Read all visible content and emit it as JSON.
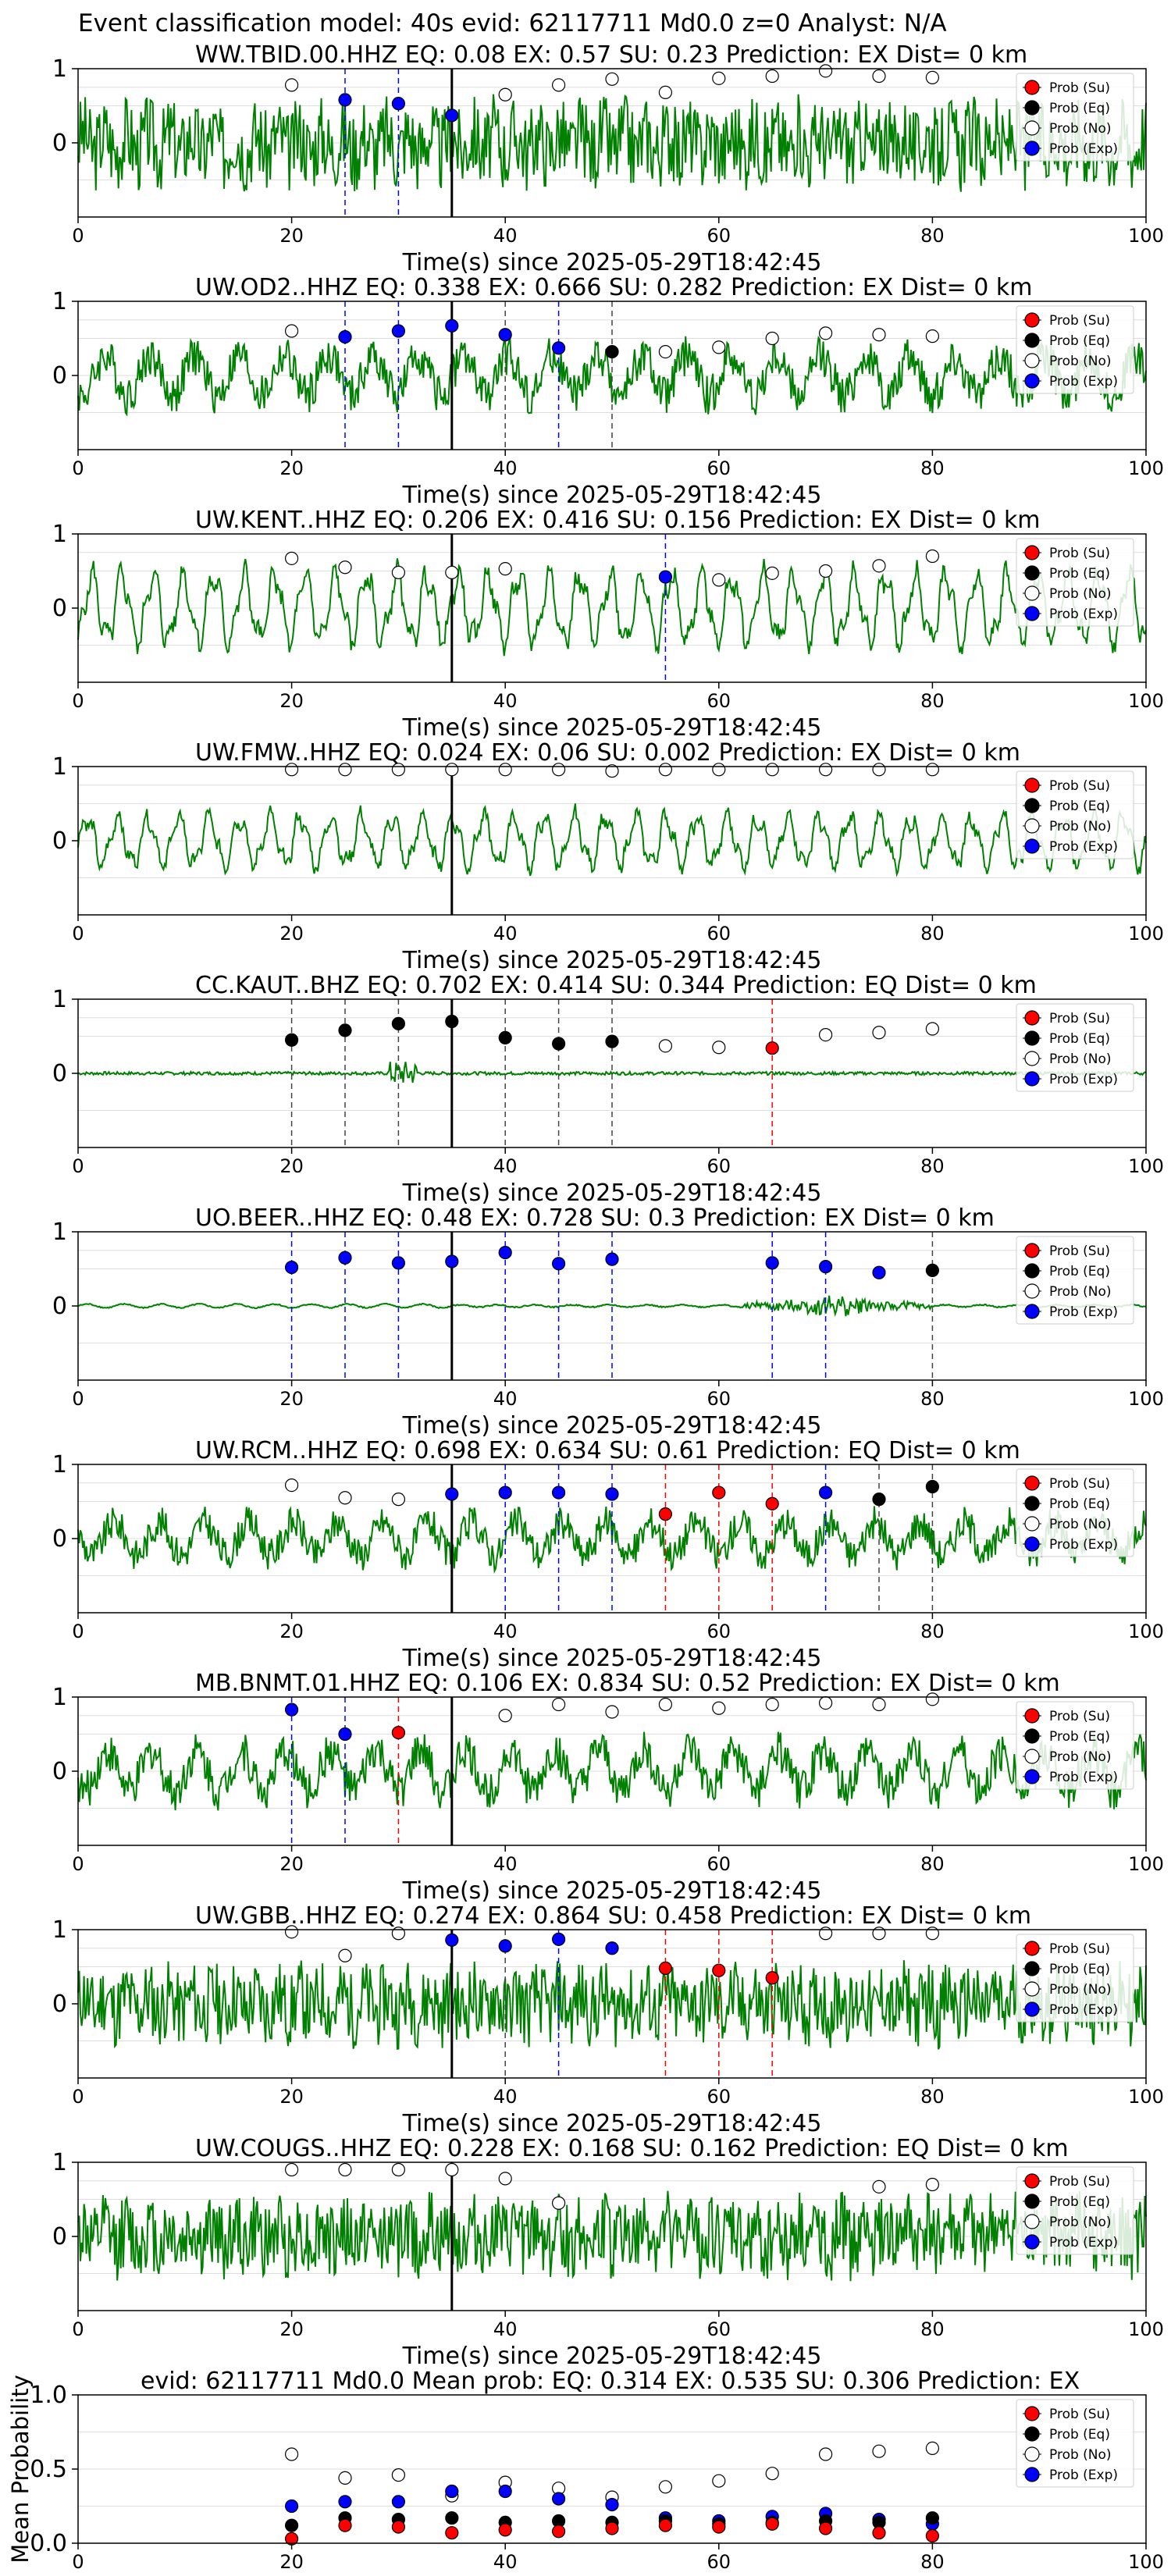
{
  "header": {
    "title": "Event classification model: 40s evid: 62117711 Md0.0 z=0 Analyst: N/A"
  },
  "legend": {
    "su": "Prob (Su)",
    "eq": "Prob (Eq)",
    "no": "Prob (No)",
    "exp": "Prob (Exp)"
  },
  "colors": {
    "waveform": "#008000",
    "su": "#ff0000",
    "eq": "#000000",
    "no": "#ffffff",
    "exp": "#0000ff"
  },
  "chart_data": [
    {
      "type": "line",
      "name": "WW.TBID.00.HHZ",
      "title": "WW.TBID.00.HHZ   EQ: 0.08  EX: 0.57  SU: 0.23   Prediction: EX    Dist= 0 km",
      "xlabel": "Time(s) since 2025-05-29T18:42:45",
      "xlim": [
        0,
        100
      ],
      "ylim": [
        -1,
        1
      ],
      "xticks": [
        0,
        20,
        40,
        60,
        80,
        100
      ],
      "yticks": [
        0,
        1
      ],
      "onset": 35,
      "amplitude": 0.6,
      "character": "noisy",
      "points": [
        [
          20,
          "no",
          0.78
        ],
        [
          25,
          "exp",
          0.58
        ],
        [
          30,
          "exp",
          0.53
        ],
        [
          35,
          "exp",
          0.37
        ],
        [
          40,
          "no",
          0.65
        ],
        [
          45,
          "no",
          0.78
        ],
        [
          50,
          "no",
          0.86
        ],
        [
          55,
          "no",
          0.68
        ],
        [
          60,
          "no",
          0.87
        ],
        [
          65,
          "no",
          0.9
        ],
        [
          70,
          "no",
          0.97
        ],
        [
          75,
          "no",
          0.9
        ],
        [
          80,
          "no",
          0.88
        ]
      ],
      "vlines": [
        [
          25,
          "exp"
        ],
        [
          30,
          "exp"
        ]
      ]
    },
    {
      "type": "line",
      "name": "UW.OD2..HHZ",
      "title": "UW.OD2..HHZ   EQ: 0.338  EX: 0.666  SU: 0.282   Prediction: EX    Dist= 0 km",
      "xlabel": "Time(s) since 2025-05-29T18:42:45",
      "xlim": [
        0,
        100
      ],
      "ylim": [
        -1,
        1
      ],
      "xticks": [
        0,
        20,
        40,
        60,
        80,
        100
      ],
      "yticks": [
        0,
        1
      ],
      "onset": 35,
      "amplitude": 0.55,
      "character": "mixed",
      "points": [
        [
          20,
          "no",
          0.6
        ],
        [
          25,
          "exp",
          0.52
        ],
        [
          30,
          "exp",
          0.6
        ],
        [
          35,
          "exp",
          0.67
        ],
        [
          40,
          "exp",
          0.55
        ],
        [
          45,
          "exp",
          0.37
        ],
        [
          50,
          "eq",
          0.32
        ],
        [
          55,
          "no",
          0.32
        ],
        [
          60,
          "no",
          0.38
        ],
        [
          65,
          "no",
          0.5
        ],
        [
          70,
          "no",
          0.57
        ],
        [
          75,
          "no",
          0.55
        ],
        [
          80,
          "no",
          0.53
        ]
      ],
      "vlines": [
        [
          25,
          "exp"
        ],
        [
          30,
          "exp"
        ],
        [
          40,
          "eq"
        ],
        [
          45,
          "exp"
        ],
        [
          50,
          "eq"
        ]
      ]
    },
    {
      "type": "line",
      "name": "UW.KENT..HHZ",
      "title": "UW.KENT..HHZ   EQ: 0.206  EX: 0.416  SU: 0.156   Prediction: EX    Dist= 0 km",
      "xlabel": "Time(s) since 2025-05-29T18:42:45",
      "xlim": [
        0,
        100
      ],
      "ylim": [
        -1,
        1
      ],
      "xticks": [
        0,
        20,
        40,
        60,
        80,
        100
      ],
      "yticks": [
        0,
        1
      ],
      "onset": 35,
      "amplitude": 0.55,
      "character": "oscill",
      "points": [
        [
          20,
          "no",
          0.67
        ],
        [
          25,
          "no",
          0.55
        ],
        [
          30,
          "no",
          0.48
        ],
        [
          35,
          "no",
          0.48
        ],
        [
          40,
          "no",
          0.53
        ],
        [
          55,
          "exp",
          0.42
        ],
        [
          60,
          "no",
          0.38
        ],
        [
          65,
          "no",
          0.47
        ],
        [
          70,
          "no",
          0.5
        ],
        [
          75,
          "no",
          0.57
        ],
        [
          80,
          "no",
          0.7
        ]
      ],
      "vlines": [
        [
          55,
          "exp"
        ]
      ]
    },
    {
      "type": "line",
      "name": "UW.FMW..HHZ",
      "title": "UW.FMW..HHZ   EQ: 0.024  EX: 0.06  SU: 0.002   Prediction: EX    Dist= 0 km",
      "xlabel": "Time(s) since 2025-05-29T18:42:45",
      "xlim": [
        0,
        100
      ],
      "ylim": [
        -1,
        1
      ],
      "xticks": [
        0,
        20,
        40,
        60,
        80,
        100
      ],
      "yticks": [
        0,
        1
      ],
      "onset": 35,
      "amplitude": 0.4,
      "character": "oscill",
      "points": [
        [
          20,
          "no",
          0.96
        ],
        [
          25,
          "no",
          0.96
        ],
        [
          30,
          "no",
          0.96
        ],
        [
          35,
          "no",
          0.96
        ],
        [
          40,
          "no",
          0.96
        ],
        [
          45,
          "no",
          0.96
        ],
        [
          50,
          "no",
          0.94
        ],
        [
          55,
          "no",
          0.96
        ],
        [
          60,
          "no",
          0.96
        ],
        [
          65,
          "no",
          0.96
        ],
        [
          70,
          "no",
          0.96
        ],
        [
          75,
          "no",
          0.96
        ],
        [
          80,
          "no",
          0.96
        ]
      ],
      "vlines": []
    },
    {
      "type": "line",
      "name": "CC.KAUT..BHZ",
      "title": "CC.KAUT..BHZ   EQ: 0.702  EX: 0.414  SU: 0.344   Prediction: EQ    Dist= 0 km",
      "xlabel": "Time(s) since 2025-05-29T18:42:45",
      "xlim": [
        0,
        100
      ],
      "ylim": [
        -1,
        1
      ],
      "xticks": [
        0,
        20,
        40,
        60,
        80,
        100
      ],
      "yticks": [
        0,
        1
      ],
      "onset": 35,
      "amplitude": 0.15,
      "character": "quiet",
      "points": [
        [
          20,
          "eq",
          0.45
        ],
        [
          25,
          "eq",
          0.58
        ],
        [
          30,
          "eq",
          0.67
        ],
        [
          35,
          "eq",
          0.7
        ],
        [
          40,
          "eq",
          0.48
        ],
        [
          45,
          "eq",
          0.4
        ],
        [
          50,
          "eq",
          0.43
        ],
        [
          55,
          "no",
          0.37
        ],
        [
          60,
          "no",
          0.35
        ],
        [
          65,
          "su",
          0.34
        ],
        [
          70,
          "no",
          0.52
        ],
        [
          75,
          "no",
          0.55
        ],
        [
          80,
          "no",
          0.6
        ]
      ],
      "vlines": [
        [
          20,
          "eq"
        ],
        [
          25,
          "eq"
        ],
        [
          30,
          "eq"
        ],
        [
          40,
          "eq"
        ],
        [
          45,
          "eq"
        ],
        [
          50,
          "eq"
        ],
        [
          65,
          "su"
        ]
      ]
    },
    {
      "type": "line",
      "name": "UO.BEER..HHZ",
      "title": "UO.BEER..HHZ   EQ: 0.48  EX: 0.728  SU: 0.3   Prediction: EX    Dist= 0 km",
      "xlabel": "Time(s) since 2025-05-29T18:42:45",
      "xlim": [
        0,
        100
      ],
      "ylim": [
        -1,
        1
      ],
      "xticks": [
        0,
        20,
        40,
        60,
        80,
        100
      ],
      "yticks": [
        0,
        1
      ],
      "onset": 35,
      "amplitude": 0.12,
      "character": "burst",
      "points": [
        [
          20,
          "exp",
          0.52
        ],
        [
          25,
          "exp",
          0.65
        ],
        [
          30,
          "exp",
          0.58
        ],
        [
          35,
          "exp",
          0.6
        ],
        [
          40,
          "exp",
          0.72
        ],
        [
          45,
          "exp",
          0.57
        ],
        [
          50,
          "exp",
          0.63
        ],
        [
          65,
          "exp",
          0.58
        ],
        [
          70,
          "exp",
          0.53
        ],
        [
          75,
          "exp",
          0.45
        ],
        [
          80,
          "eq",
          0.48
        ]
      ],
      "vlines": [
        [
          20,
          "exp"
        ],
        [
          25,
          "exp"
        ],
        [
          30,
          "exp"
        ],
        [
          40,
          "exp"
        ],
        [
          45,
          "exp"
        ],
        [
          50,
          "exp"
        ],
        [
          65,
          "exp"
        ],
        [
          70,
          "exp"
        ],
        [
          80,
          "eq"
        ]
      ]
    },
    {
      "type": "line",
      "name": "UW.RCM..HHZ",
      "title": "UW.RCM..HHZ   EQ: 0.698  EX: 0.634  SU: 0.61   Prediction: EQ    Dist= 0 km",
      "xlabel": "Time(s) since 2025-05-29T18:42:45",
      "xlim": [
        0,
        100
      ],
      "ylim": [
        -1,
        1
      ],
      "xticks": [
        0,
        20,
        40,
        60,
        80,
        100
      ],
      "yticks": [
        0,
        1
      ],
      "onset": 35,
      "amplitude": 0.45,
      "character": "mixed",
      "points": [
        [
          20,
          "no",
          0.72
        ],
        [
          25,
          "no",
          0.55
        ],
        [
          30,
          "no",
          0.53
        ],
        [
          35,
          "exp",
          0.6
        ],
        [
          40,
          "exp",
          0.62
        ],
        [
          45,
          "exp",
          0.62
        ],
        [
          50,
          "exp",
          0.6
        ],
        [
          55,
          "su",
          0.33
        ],
        [
          60,
          "su",
          0.62
        ],
        [
          65,
          "su",
          0.47
        ],
        [
          70,
          "exp",
          0.62
        ],
        [
          75,
          "eq",
          0.53
        ],
        [
          80,
          "eq",
          0.7
        ]
      ],
      "vlines": [
        [
          40,
          "exp"
        ],
        [
          45,
          "exp"
        ],
        [
          50,
          "exp"
        ],
        [
          55,
          "su"
        ],
        [
          60,
          "su"
        ],
        [
          65,
          "su"
        ],
        [
          70,
          "exp"
        ],
        [
          75,
          "eq"
        ],
        [
          80,
          "eq"
        ]
      ]
    },
    {
      "type": "line",
      "name": "MB.BNMT.01.HHZ",
      "title": "MB.BNMT.01.HHZ   EQ: 0.106  EX: 0.834  SU: 0.52   Prediction: EX    Dist= 0 km",
      "xlabel": "Time(s) since 2025-05-29T18:42:45",
      "xlim": [
        0,
        100
      ],
      "ylim": [
        -1,
        1
      ],
      "xticks": [
        0,
        20,
        40,
        60,
        80,
        100
      ],
      "yticks": [
        0,
        1
      ],
      "onset": 35,
      "amplitude": 0.55,
      "character": "mixed",
      "points": [
        [
          20,
          "exp",
          0.83
        ],
        [
          25,
          "exp",
          0.5
        ],
        [
          30,
          "su",
          0.52
        ],
        [
          40,
          "no",
          0.75
        ],
        [
          45,
          "no",
          0.9
        ],
        [
          50,
          "no",
          0.8
        ],
        [
          55,
          "no",
          0.9
        ],
        [
          60,
          "no",
          0.85
        ],
        [
          65,
          "no",
          0.9
        ],
        [
          70,
          "no",
          0.92
        ],
        [
          75,
          "no",
          0.9
        ],
        [
          80,
          "no",
          0.97
        ]
      ],
      "vlines": [
        [
          20,
          "exp"
        ],
        [
          25,
          "exp"
        ],
        [
          30,
          "su"
        ]
      ]
    },
    {
      "type": "line",
      "name": "UW.GBB..HHZ",
      "title": "UW.GBB..HHZ   EQ: 0.274  EX: 0.864  SU: 0.458   Prediction: EX    Dist= 0 km",
      "xlabel": "Time(s) since 2025-05-29T18:42:45",
      "xlim": [
        0,
        100
      ],
      "ylim": [
        -1,
        1
      ],
      "xticks": [
        0,
        20,
        40,
        60,
        80,
        100
      ],
      "yticks": [
        0,
        1
      ],
      "onset": 35,
      "amplitude": 0.55,
      "character": "noisy",
      "points": [
        [
          20,
          "no",
          0.97
        ],
        [
          25,
          "no",
          0.65
        ],
        [
          30,
          "no",
          0.95
        ],
        [
          35,
          "exp",
          0.86
        ],
        [
          40,
          "exp",
          0.78
        ],
        [
          45,
          "exp",
          0.87
        ],
        [
          50,
          "exp",
          0.75
        ],
        [
          55,
          "su",
          0.48
        ],
        [
          60,
          "su",
          0.45
        ],
        [
          65,
          "su",
          0.35
        ],
        [
          70,
          "no",
          0.95
        ],
        [
          75,
          "no",
          0.95
        ],
        [
          80,
          "no",
          0.95
        ]
      ],
      "vlines": [
        [
          40,
          "eq"
        ],
        [
          45,
          "exp"
        ],
        [
          55,
          "su"
        ],
        [
          60,
          "su"
        ],
        [
          65,
          "su"
        ]
      ]
    },
    {
      "type": "line",
      "name": "UW.COUGS..HHZ",
      "title": "UW.COUGS..HHZ   EQ: 0.228  EX: 0.168  SU: 0.162   Prediction: EQ    Dist= 0 km",
      "xlabel": "Time(s) since 2025-05-29T18:42:45",
      "xlim": [
        0,
        100
      ],
      "ylim": [
        -1,
        1
      ],
      "xticks": [
        0,
        20,
        40,
        60,
        80,
        100
      ],
      "yticks": [
        0,
        1
      ],
      "onset": 35,
      "amplitude": 0.55,
      "character": "noisy",
      "points": [
        [
          20,
          "no",
          0.9
        ],
        [
          25,
          "no",
          0.9
        ],
        [
          30,
          "no",
          0.9
        ],
        [
          35,
          "no",
          0.9
        ],
        [
          40,
          "no",
          0.78
        ],
        [
          45,
          "no",
          0.45
        ],
        [
          75,
          "no",
          0.67
        ],
        [
          80,
          "no",
          0.7
        ]
      ],
      "vlines": []
    },
    {
      "type": "scatter",
      "name": "mean",
      "title": "evid: 62117711  Md0.0   Mean prob:   EQ: 0.314  EX: 0.535  SU: 0.306   Prediction: EX",
      "ylabel": "Mean Probability",
      "xlim": [
        0,
        100
      ],
      "ylim": [
        0,
        1
      ],
      "xticks": [
        0,
        20,
        40,
        60,
        80,
        100
      ],
      "yticks": [
        0.0,
        0.5,
        1.0
      ],
      "x": [
        20,
        25,
        30,
        35,
        40,
        45,
        50,
        55,
        60,
        65,
        70,
        75,
        80
      ],
      "series": [
        {
          "cls": "no",
          "values": [
            0.6,
            0.44,
            0.46,
            0.32,
            0.41,
            0.37,
            0.31,
            0.38,
            0.42,
            0.47,
            0.6,
            0.62,
            0.64
          ]
        },
        {
          "cls": "exp",
          "values": [
            0.25,
            0.28,
            0.28,
            0.35,
            0.35,
            0.3,
            0.26,
            0.17,
            0.15,
            0.18,
            0.2,
            0.16,
            0.13
          ]
        },
        {
          "cls": "eq",
          "values": [
            0.12,
            0.17,
            0.16,
            0.17,
            0.14,
            0.15,
            0.14,
            0.15,
            0.13,
            0.14,
            0.15,
            0.14,
            0.17
          ]
        },
        {
          "cls": "su",
          "values": [
            0.03,
            0.12,
            0.11,
            0.07,
            0.09,
            0.08,
            0.1,
            0.12,
            0.11,
            0.13,
            0.1,
            0.07,
            0.05
          ]
        }
      ]
    }
  ]
}
